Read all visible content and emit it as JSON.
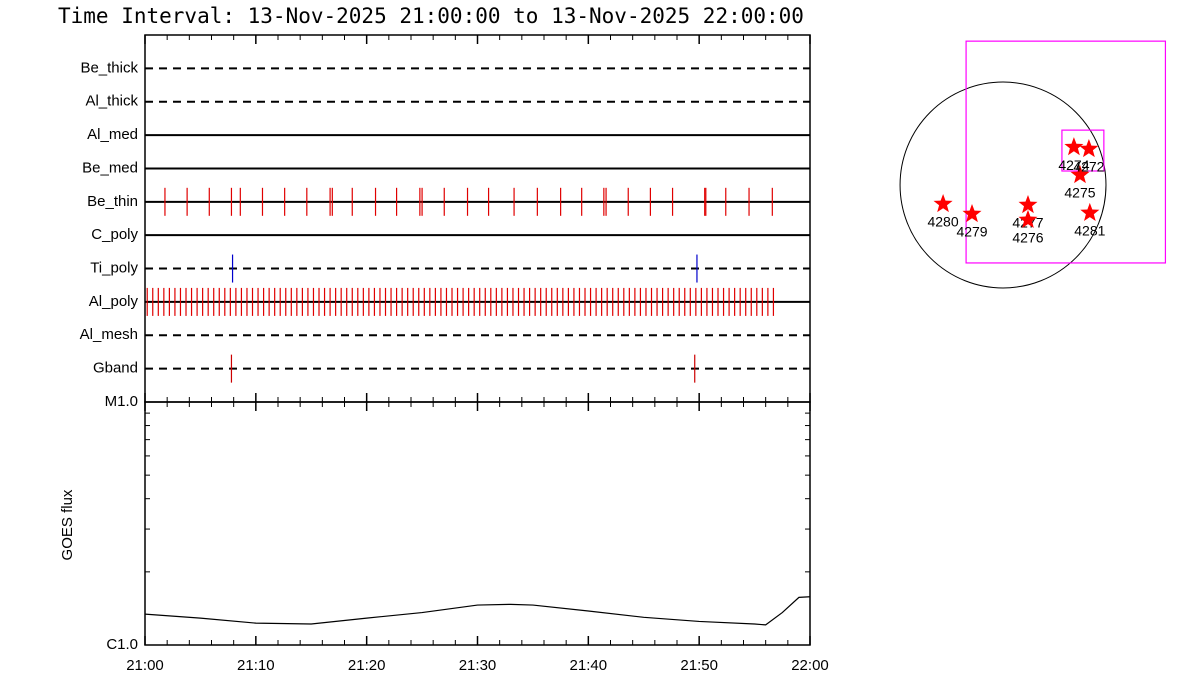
{
  "chart_data": [
    {
      "type": "event",
      "title": "Time Interval: 13-Nov-2025 21:00:00 to 13-Nov-2025 22:00:00",
      "rows": [
        {
          "name": "Be_thick",
          "linestyle": "dashed",
          "color": "#ff0000",
          "x": []
        },
        {
          "name": "Al_thick",
          "linestyle": "dashed",
          "color": "#ff0000",
          "x": []
        },
        {
          "name": "Al_med",
          "linestyle": "solid",
          "color": "#ff0000",
          "x": []
        },
        {
          "name": "Be_med",
          "linestyle": "solid",
          "color": "#ff0000",
          "x": []
        },
        {
          "name": "Be_thin",
          "linestyle": "solid",
          "color": "#e00000",
          "x": [
            1.8,
            3.8,
            5.8,
            7.8,
            8.6,
            10.6,
            12.6,
            14.6,
            16.7,
            16.9,
            18.7,
            20.8,
            22.7,
            24.8,
            25.0,
            27.0,
            29.1,
            31.0,
            33.3,
            35.4,
            37.5,
            39.4,
            41.4,
            41.6,
            43.6,
            45.6,
            47.6,
            50.5,
            50.6,
            52.4,
            54.5,
            56.6
          ]
        },
        {
          "name": "C_poly",
          "linestyle": "solid",
          "color": "#ff0000",
          "x": []
        },
        {
          "name": "Ti_poly",
          "linestyle": "dashed",
          "color": "#0000cc",
          "x": [
            7.9,
            49.8
          ]
        },
        {
          "name": "Al_poly",
          "linestyle": "solid",
          "color": "#e00000",
          "x": [
            0.2,
            0.7,
            1.2,
            1.7,
            2.2,
            2.7,
            3.2,
            3.7,
            4.2,
            4.7,
            5.2,
            5.7,
            6.2,
            6.7,
            7.2,
            7.7,
            8.2,
            8.7,
            9.2,
            9.7,
            10.2,
            10.7,
            11.2,
            11.7,
            12.2,
            12.7,
            13.2,
            13.7,
            14.2,
            14.7,
            15.2,
            15.7,
            16.2,
            16.7,
            17.2,
            17.7,
            18.2,
            18.7,
            19.2,
            19.7,
            20.2,
            20.7,
            21.2,
            21.7,
            22.2,
            22.7,
            23.2,
            23.7,
            24.2,
            24.7,
            25.2,
            25.7,
            26.2,
            26.7,
            27.2,
            27.7,
            28.2,
            28.7,
            29.2,
            29.7,
            30.2,
            30.7,
            31.2,
            31.7,
            32.2,
            32.7,
            33.2,
            33.7,
            34.2,
            34.7,
            35.2,
            35.7,
            36.2,
            36.7,
            37.2,
            37.7,
            38.2,
            38.7,
            39.2,
            39.7,
            40.2,
            40.7,
            41.2,
            41.7,
            42.2,
            42.7,
            43.2,
            43.7,
            44.2,
            44.7,
            45.2,
            45.7,
            46.2,
            46.7,
            47.2,
            47.7,
            48.2,
            48.7,
            49.2,
            49.7,
            50.2,
            50.7,
            51.2,
            51.7,
            52.2,
            52.7,
            53.2,
            53.7,
            54.2,
            54.7,
            55.2,
            55.7,
            56.2,
            56.7
          ]
        },
        {
          "name": "Al_mesh",
          "linestyle": "dashed",
          "color": "#ff0000",
          "x": []
        },
        {
          "name": "Gband",
          "linestyle": "dashed",
          "color": "#cc0000",
          "x": [
            7.8,
            49.6
          ]
        }
      ]
    },
    {
      "type": "line",
      "ylabel": "GOES flux",
      "x": [
        0,
        5,
        10,
        15,
        20,
        25,
        30,
        33,
        35,
        40,
        45,
        50,
        55,
        56,
        57.5,
        59,
        60
      ],
      "values": [
        1.34e-06,
        1.29e-06,
        1.23e-06,
        1.22e-06,
        1.29e-06,
        1.36e-06,
        1.46e-06,
        1.47e-06,
        1.46e-06,
        1.38e-06,
        1.3e-06,
        1.25e-06,
        1.22e-06,
        1.21e-06,
        1.36e-06,
        1.57e-06,
        1.58e-06
      ],
      "color": "#000000",
      "ylog": true,
      "ylim": [
        1e-06,
        1e-05
      ],
      "yticks": [
        {
          "value": 1e-06,
          "label": "C1.0"
        },
        {
          "value": 1e-05,
          "label": "M1.0"
        }
      ],
      "yminorticks": [
        2e-06,
        3e-06,
        4e-06,
        5e-06,
        6e-06,
        7e-06,
        8e-06,
        9e-06
      ],
      "xlim": [
        0,
        60
      ],
      "xticks": [
        {
          "value": 0,
          "label": "21:00"
        },
        {
          "value": 10,
          "label": "21:10"
        },
        {
          "value": 20,
          "label": "21:20"
        },
        {
          "value": 30,
          "label": "21:30"
        },
        {
          "value": 40,
          "label": "21:40"
        },
        {
          "value": 50,
          "label": "21:50"
        },
        {
          "value": 60,
          "label": "22:00"
        }
      ],
      "xminorticks": [
        2,
        4,
        6,
        8,
        12,
        14,
        16,
        18,
        22,
        24,
        26,
        28,
        32,
        34,
        36,
        38,
        42,
        44,
        46,
        48,
        52,
        54,
        56,
        58
      ]
    },
    {
      "type": "map",
      "xlim": [
        -1159,
        1526
      ],
      "ylim": [
        -1083,
        1460
      ],
      "rsun": 970,
      "region_color": "#ff00ff",
      "regions": [
        {
          "x": [
            -348,
            1530
          ],
          "y": [
            -734,
            1355
          ]
        },
        {
          "x": [
            555,
            950
          ],
          "y": [
            132,
            517
          ]
        }
      ],
      "color": "#ff0000",
      "points": [
        {
          "label": "4280",
          "x": -565,
          "y": -179
        },
        {
          "label": "4279",
          "x": -292,
          "y": -273
        },
        {
          "label": "4277",
          "x": 235,
          "y": -188
        },
        {
          "label": "4276",
          "x": 235,
          "y": -329
        },
        {
          "label": "4275",
          "x": 725,
          "y": 94
        },
        {
          "label": "4274",
          "x": 668,
          "y": 357
        },
        {
          "label": "4272",
          "x": 809,
          "y": 339
        },
        {
          "label": "4281",
          "x": 818,
          "y": -263
        }
      ]
    }
  ]
}
